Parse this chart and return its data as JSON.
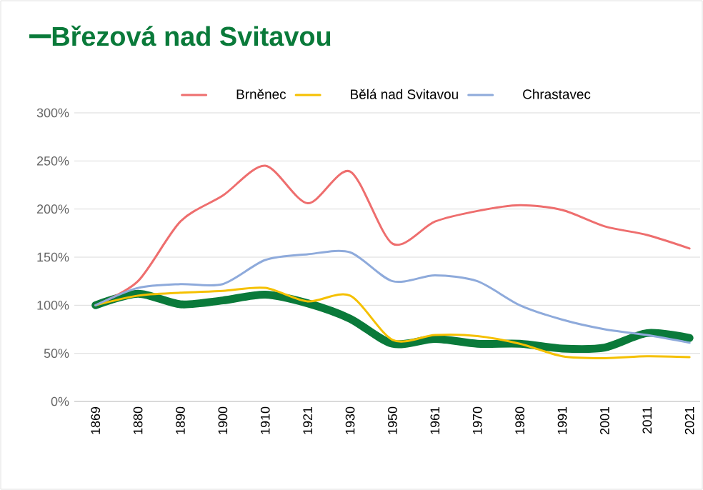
{
  "chart_data": {
    "type": "line",
    "title": "Březová nad Svitavou",
    "categories": [
      "1869",
      "1880",
      "1890",
      "1900",
      "1910",
      "1921",
      "1930",
      "1950",
      "1961",
      "1970",
      "1980",
      "1991",
      "2001",
      "2011",
      "2021"
    ],
    "series": [
      {
        "color": "#0a7a3a",
        "values": [
          100,
          112,
          101,
          105,
          111,
          102,
          86,
          60,
          65,
          60,
          60,
          55,
          56,
          71,
          66
        ]
      },
      {
        "name": "Brněnec",
        "color": "#ee6e6e",
        "values": [
          100,
          125,
          187,
          214,
          245,
          206,
          239,
          164,
          187,
          198,
          204,
          199,
          182,
          173,
          159
        ]
      },
      {
        "name": "Bělá nad Svitavou",
        "color": "#f5c000",
        "values": [
          100,
          110,
          113,
          115,
          118,
          104,
          110,
          64,
          69,
          68,
          60,
          47,
          45,
          47,
          46
        ]
      },
      {
        "name": "Chrastavec",
        "color": "#8eaadb",
        "values": [
          100,
          118,
          122,
          122,
          147,
          153,
          155,
          125,
          131,
          125,
          100,
          85,
          75,
          69,
          61
        ]
      }
    ],
    "ylim": [
      0,
      300
    ],
    "yticks": [
      {
        "value": 0,
        "label": "0%"
      },
      {
        "value": 50,
        "label": "50%"
      },
      {
        "value": 100,
        "label": "100%"
      },
      {
        "value": 150,
        "label": "150%"
      },
      {
        "value": 200,
        "label": "200%"
      },
      {
        "value": 250,
        "label": "250%"
      },
      {
        "value": 300,
        "label": "300%"
      }
    ],
    "grid": "y",
    "legend": "top",
    "line_style": "solid",
    "marker": "none"
  }
}
